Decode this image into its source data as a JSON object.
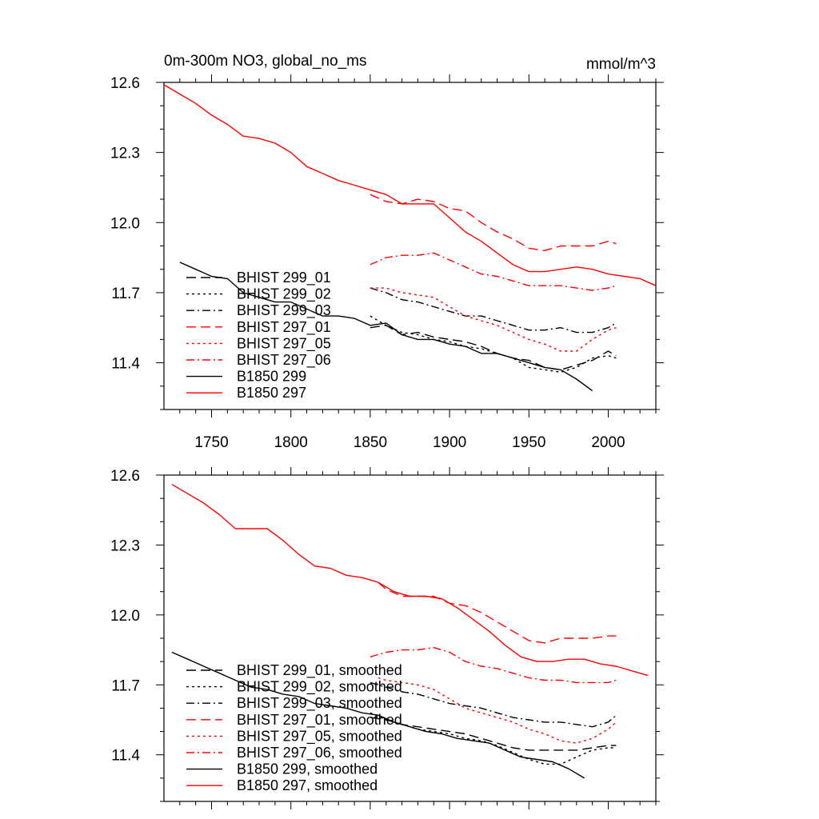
{
  "chart_data": [
    {
      "type": "line",
      "title": "0m-300m NO3, global_no_ms",
      "units": "mmol/m^3",
      "xlim": [
        1720,
        2030
      ],
      "ylim": [
        11.2,
        12.6
      ],
      "xticks": [
        1750,
        1800,
        1850,
        1900,
        1950,
        2000
      ],
      "yticks": [
        11.4,
        11.7,
        12.0,
        12.3,
        12.6
      ],
      "series": [
        {
          "name": "BHIST 299_01",
          "color": "#000000",
          "dash": "dash",
          "x": [
            1850,
            1860,
            1870,
            1880,
            1890,
            1900,
            1910,
            1920,
            1930,
            1940,
            1950,
            1960,
            1970,
            1980,
            1990,
            2000,
            2005
          ],
          "y": [
            11.55,
            11.56,
            11.52,
            11.53,
            11.51,
            11.5,
            11.49,
            11.47,
            11.44,
            11.42,
            11.41,
            11.38,
            11.37,
            11.39,
            11.41,
            11.45,
            11.43
          ]
        },
        {
          "name": "BHIST 299_02",
          "color": "#000000",
          "dash": "dot",
          "x": [
            1850,
            1860,
            1870,
            1880,
            1890,
            1900,
            1910,
            1920,
            1930,
            1940,
            1950,
            1960,
            1970,
            1980,
            1990,
            2000,
            2005
          ],
          "y": [
            11.6,
            11.56,
            11.53,
            11.52,
            11.5,
            11.49,
            11.47,
            11.46,
            11.44,
            11.42,
            11.38,
            11.37,
            11.36,
            11.38,
            11.42,
            11.43,
            11.42
          ]
        },
        {
          "name": "BHIST 299_03",
          "color": "#000000",
          "dash": "dashdot",
          "x": [
            1850,
            1860,
            1870,
            1880,
            1890,
            1900,
            1910,
            1920,
            1930,
            1940,
            1950,
            1960,
            1970,
            1980,
            1990,
            2000,
            2005
          ],
          "y": [
            11.72,
            11.7,
            11.67,
            11.66,
            11.64,
            11.62,
            11.6,
            11.6,
            11.58,
            11.56,
            11.54,
            11.54,
            11.55,
            11.53,
            11.53,
            11.55,
            11.57
          ]
        },
        {
          "name": "BHIST 297_01",
          "color": "#ff0000",
          "dash": "dash",
          "x": [
            1850,
            1860,
            1870,
            1880,
            1890,
            1900,
            1910,
            1920,
            1930,
            1940,
            1950,
            1960,
            1970,
            1980,
            1990,
            2000,
            2005
          ],
          "y": [
            12.12,
            12.09,
            12.08,
            12.1,
            12.09,
            12.06,
            12.05,
            12.0,
            11.96,
            11.93,
            11.89,
            11.88,
            11.9,
            11.9,
            11.9,
            11.92,
            11.91
          ]
        },
        {
          "name": "BHIST 297_05",
          "color": "#ff0000",
          "dash": "dot",
          "x": [
            1850,
            1860,
            1870,
            1880,
            1890,
            1900,
            1910,
            1920,
            1930,
            1940,
            1950,
            1960,
            1970,
            1980,
            1990,
            2000,
            2005
          ],
          "y": [
            11.72,
            11.72,
            11.7,
            11.69,
            11.68,
            11.64,
            11.6,
            11.58,
            11.56,
            11.53,
            11.5,
            11.48,
            11.45,
            11.45,
            11.5,
            11.54,
            11.55
          ]
        },
        {
          "name": "BHIST 297_06",
          "color": "#ff0000",
          "dash": "dashdot",
          "x": [
            1850,
            1860,
            1870,
            1880,
            1890,
            1900,
            1910,
            1920,
            1930,
            1940,
            1950,
            1960,
            1970,
            1980,
            1990,
            2000,
            2005
          ],
          "y": [
            11.82,
            11.85,
            11.86,
            11.86,
            11.87,
            11.84,
            11.81,
            11.78,
            11.77,
            11.75,
            11.73,
            11.73,
            11.73,
            11.72,
            11.71,
            11.72,
            11.73
          ]
        },
        {
          "name": "B1850 299",
          "color": "#000000",
          "dash": "solid",
          "x": [
            1730,
            1740,
            1750,
            1760,
            1770,
            1780,
            1790,
            1800,
            1810,
            1820,
            1830,
            1840,
            1850,
            1860,
            1870,
            1880,
            1890,
            1900,
            1910,
            1920,
            1930,
            1940,
            1950,
            1960,
            1970,
            1980,
            1990
          ],
          "y": [
            11.83,
            11.8,
            11.77,
            11.76,
            11.7,
            11.68,
            11.66,
            11.66,
            11.63,
            11.6,
            11.6,
            11.59,
            11.56,
            11.57,
            11.52,
            11.5,
            11.5,
            11.48,
            11.47,
            11.44,
            11.44,
            11.42,
            11.4,
            11.38,
            11.37,
            11.33,
            11.28
          ]
        },
        {
          "name": "B1850 297",
          "color": "#ff0000",
          "dash": "solid",
          "x": [
            1720,
            1730,
            1740,
            1750,
            1760,
            1770,
            1780,
            1790,
            1800,
            1810,
            1820,
            1830,
            1840,
            1850,
            1860,
            1870,
            1880,
            1890,
            1900,
            1910,
            1920,
            1930,
            1940,
            1950,
            1960,
            1970,
            1980,
            1990,
            2000,
            2010,
            2020,
            2030
          ],
          "y": [
            12.59,
            12.55,
            12.51,
            12.46,
            12.42,
            12.37,
            12.36,
            12.34,
            12.3,
            12.24,
            12.21,
            12.18,
            12.16,
            12.14,
            12.12,
            12.08,
            12.08,
            12.08,
            12.02,
            11.96,
            11.92,
            11.87,
            11.82,
            11.79,
            11.79,
            11.8,
            11.81,
            11.8,
            11.78,
            11.77,
            11.76,
            11.73
          ]
        }
      ]
    },
    {
      "type": "line",
      "xlim": [
        1720,
        2030
      ],
      "ylim": [
        11.2,
        12.6
      ],
      "xticks": [
        1750,
        1800,
        1850,
        1900,
        1950,
        2000
      ],
      "yticks": [
        11.4,
        11.7,
        12.0,
        12.3,
        12.6
      ],
      "series": [
        {
          "name": "BHIST 299_01, smoothed",
          "color": "#000000",
          "dash": "dash",
          "x": [
            1850,
            1860,
            1870,
            1880,
            1890,
            1900,
            1910,
            1920,
            1930,
            1940,
            1950,
            1960,
            1970,
            1980,
            1990,
            2000,
            2005
          ],
          "y": [
            11.56,
            11.55,
            11.53,
            11.52,
            11.51,
            11.5,
            11.49,
            11.47,
            11.45,
            11.43,
            11.42,
            11.42,
            11.42,
            11.42,
            11.43,
            11.44,
            11.44
          ]
        },
        {
          "name": "BHIST 299_02, smoothed",
          "color": "#000000",
          "dash": "dot",
          "x": [
            1850,
            1860,
            1870,
            1880,
            1890,
            1900,
            1910,
            1920,
            1930,
            1940,
            1950,
            1960,
            1970,
            1980,
            1990,
            2000,
            2005
          ],
          "y": [
            11.58,
            11.55,
            11.53,
            11.51,
            11.5,
            11.49,
            11.47,
            11.46,
            11.44,
            11.41,
            11.38,
            11.36,
            11.36,
            11.39,
            11.42,
            11.43,
            11.43
          ]
        },
        {
          "name": "BHIST 299_03, smoothed",
          "color": "#000000",
          "dash": "dashdot",
          "x": [
            1850,
            1860,
            1870,
            1880,
            1890,
            1900,
            1910,
            1920,
            1930,
            1940,
            1950,
            1960,
            1970,
            1980,
            1990,
            2000,
            2005
          ],
          "y": [
            11.71,
            11.69,
            11.67,
            11.66,
            11.64,
            11.62,
            11.61,
            11.6,
            11.58,
            11.56,
            11.55,
            11.54,
            11.54,
            11.53,
            11.52,
            11.54,
            11.57
          ]
        },
        {
          "name": "BHIST 297_01, smoothed",
          "color": "#ff0000",
          "dash": "dash",
          "x": [
            1855,
            1860,
            1870,
            1880,
            1890,
            1900,
            1910,
            1920,
            1930,
            1940,
            1950,
            1960,
            1970,
            1980,
            1990,
            2000,
            2005
          ],
          "y": [
            12.14,
            12.11,
            12.08,
            12.08,
            12.08,
            12.05,
            12.04,
            12.01,
            11.97,
            11.93,
            11.89,
            11.88,
            11.9,
            11.9,
            11.9,
            11.91,
            11.91
          ]
        },
        {
          "name": "BHIST 297_05, smoothed",
          "color": "#ff0000",
          "dash": "dot",
          "x": [
            1855,
            1860,
            1870,
            1880,
            1890,
            1900,
            1910,
            1920,
            1930,
            1940,
            1950,
            1960,
            1970,
            1980,
            1990,
            2000,
            2005
          ],
          "y": [
            11.73,
            11.72,
            11.71,
            11.7,
            11.68,
            11.64,
            11.6,
            11.58,
            11.56,
            11.54,
            11.51,
            11.49,
            11.46,
            11.45,
            11.47,
            11.51,
            11.54
          ]
        },
        {
          "name": "BHIST 297_06, smoothed",
          "color": "#ff0000",
          "dash": "dashdot",
          "x": [
            1850,
            1860,
            1870,
            1880,
            1890,
            1900,
            1910,
            1920,
            1930,
            1940,
            1950,
            1960,
            1970,
            1980,
            1990,
            2000,
            2005
          ],
          "y": [
            11.82,
            11.84,
            11.85,
            11.85,
            11.86,
            11.84,
            11.8,
            11.78,
            11.77,
            11.75,
            11.73,
            11.72,
            11.72,
            11.71,
            11.71,
            11.71,
            11.72
          ]
        },
        {
          "name": "B1850 299, smoothed",
          "color": "#000000",
          "dash": "solid",
          "x": [
            1725,
            1735,
            1745,
            1755,
            1765,
            1775,
            1785,
            1795,
            1805,
            1815,
            1825,
            1835,
            1845,
            1855,
            1865,
            1875,
            1885,
            1895,
            1905,
            1915,
            1925,
            1935,
            1945,
            1955,
            1965,
            1975,
            1985
          ],
          "y": [
            11.84,
            11.81,
            11.78,
            11.75,
            11.72,
            11.69,
            11.68,
            11.66,
            11.65,
            11.62,
            11.61,
            11.6,
            11.58,
            11.57,
            11.54,
            11.52,
            11.5,
            11.49,
            11.47,
            11.46,
            11.45,
            11.42,
            11.39,
            11.38,
            11.37,
            11.34,
            11.3
          ]
        },
        {
          "name": "B1850 297, smoothed",
          "color": "#ff0000",
          "dash": "solid",
          "x": [
            1725,
            1735,
            1745,
            1755,
            1765,
            1775,
            1785,
            1795,
            1805,
            1815,
            1825,
            1835,
            1845,
            1855,
            1865,
            1875,
            1885,
            1895,
            1905,
            1915,
            1925,
            1935,
            1945,
            1955,
            1965,
            1975,
            1985,
            1995,
            2005,
            2015,
            2025
          ],
          "y": [
            12.56,
            12.52,
            12.48,
            12.43,
            12.37,
            12.37,
            12.37,
            12.32,
            12.26,
            12.21,
            12.2,
            12.17,
            12.16,
            12.14,
            12.1,
            12.08,
            12.08,
            12.07,
            12.03,
            11.98,
            11.93,
            11.87,
            11.82,
            11.8,
            11.8,
            11.81,
            11.81,
            11.79,
            11.78,
            11.76,
            11.74
          ]
        }
      ]
    }
  ]
}
